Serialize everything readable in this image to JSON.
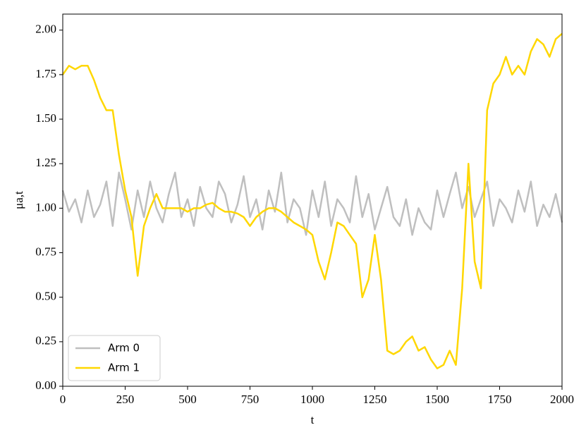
{
  "chart_data": {
    "type": "line",
    "xlabel": "t",
    "ylabel": "μa,t",
    "x": [
      0,
      25,
      50,
      75,
      100,
      125,
      150,
      175,
      200,
      225,
      250,
      275,
      300,
      325,
      350,
      375,
      400,
      425,
      450,
      475,
      500,
      525,
      550,
      575,
      600,
      625,
      650,
      675,
      700,
      725,
      750,
      775,
      800,
      825,
      850,
      875,
      900,
      925,
      950,
      975,
      1000,
      1025,
      1050,
      1075,
      1100,
      1125,
      1150,
      1175,
      1200,
      1225,
      1250,
      1275,
      1300,
      1325,
      1350,
      1375,
      1400,
      1425,
      1450,
      1475,
      1500,
      1525,
      1550,
      1575,
      1600,
      1625,
      1650,
      1675,
      1700,
      1725,
      1750,
      1775,
      1800,
      1825,
      1850,
      1875,
      1900,
      1925,
      1950,
      1975,
      2000
    ],
    "series": [
      {
        "name": "Arm 0",
        "color": "#bfbfbf",
        "values": [
          1.1,
          0.98,
          1.05,
          0.92,
          1.1,
          0.95,
          1.02,
          1.15,
          0.9,
          1.2,
          1.05,
          0.88,
          1.1,
          0.95,
          1.15,
          1.0,
          0.92,
          1.08,
          1.2,
          0.95,
          1.05,
          0.9,
          1.12,
          1.0,
          0.95,
          1.15,
          1.08,
          0.92,
          1.02,
          1.18,
          0.95,
          1.05,
          0.88,
          1.1,
          0.98,
          1.2,
          0.92,
          1.05,
          1.0,
          0.85,
          1.1,
          0.95,
          1.15,
          0.9,
          1.05,
          1.0,
          0.92,
          1.18,
          0.95,
          1.08,
          0.88,
          1.0,
          1.12,
          0.95,
          0.9,
          1.05,
          0.85,
          1.0,
          0.92,
          0.88,
          1.1,
          0.95,
          1.08,
          1.2,
          1.0,
          1.12,
          0.95,
          1.05,
          1.15,
          0.9,
          1.05,
          1.0,
          0.92,
          1.1,
          0.98,
          1.15,
          0.9,
          1.02,
          0.95,
          1.08,
          0.92
        ]
      },
      {
        "name": "Arm 1",
        "color": "#ffd700",
        "values": [
          1.75,
          1.8,
          1.78,
          1.8,
          1.8,
          1.72,
          1.62,
          1.55,
          1.55,
          1.3,
          1.1,
          0.95,
          0.62,
          0.9,
          1.0,
          1.08,
          1.0,
          1.0,
          1.0,
          1.0,
          0.98,
          1.0,
          1.0,
          1.02,
          1.03,
          1.0,
          0.98,
          0.98,
          0.97,
          0.95,
          0.9,
          0.95,
          0.98,
          1.0,
          1.0,
          0.98,
          0.95,
          0.92,
          0.9,
          0.88,
          0.85,
          0.7,
          0.6,
          0.75,
          0.92,
          0.9,
          0.85,
          0.8,
          0.5,
          0.6,
          0.85,
          0.6,
          0.2,
          0.18,
          0.2,
          0.25,
          0.28,
          0.2,
          0.22,
          0.15,
          0.1,
          0.12,
          0.2,
          0.12,
          0.55,
          1.25,
          0.7,
          0.55,
          1.55,
          1.7,
          1.75,
          1.85,
          1.75,
          1.8,
          1.75,
          1.88,
          1.95,
          1.92,
          1.85,
          1.95,
          1.98
        ]
      }
    ],
    "xlim": [
      0,
      2000
    ],
    "xticks": [
      0,
      250,
      500,
      750,
      1000,
      1250,
      1500,
      1750,
      2000
    ],
    "ylim": [
      0,
      2.09
    ],
    "yticks": [
      {
        "value": 0,
        "label": "0.00"
      },
      {
        "value": 0.25,
        "label": "0.25"
      },
      {
        "value": 0.5,
        "label": "0.50"
      },
      {
        "value": 0.75,
        "label": "0.75"
      },
      {
        "value": 1,
        "label": "1.00"
      },
      {
        "value": 1.25,
        "label": "1.25"
      },
      {
        "value": 1.5,
        "label": "1.50"
      },
      {
        "value": 1.75,
        "label": "1.75"
      },
      {
        "value": 2,
        "label": "2.00"
      }
    ],
    "legend": "lower left"
  }
}
